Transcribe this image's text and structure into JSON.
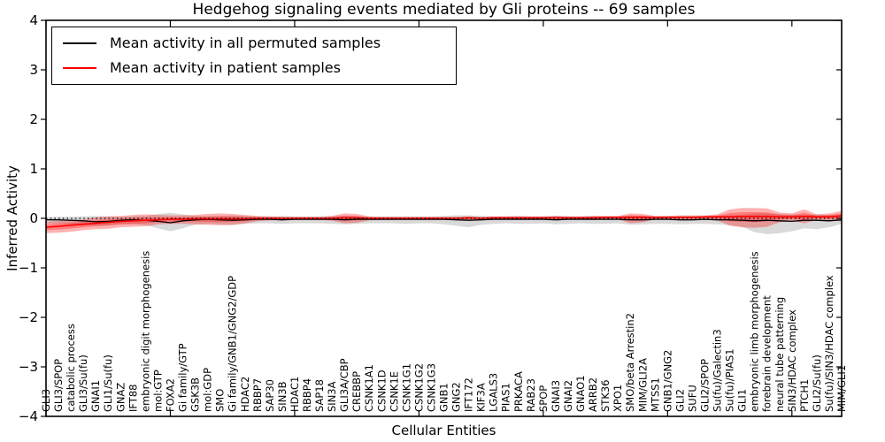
{
  "chart_data": {
    "type": "line",
    "title": "Hedgehog signaling events mediated by Gli proteins -- 69 samples",
    "xlabel": "Cellular Entities",
    "ylabel": "Inferred Activity",
    "ylim": [
      -4,
      4
    ],
    "yticks": [
      4,
      3,
      2,
      1,
      0,
      -1,
      -2,
      -3,
      -4
    ],
    "grid": false,
    "legend_position": "upper left",
    "zero_line": {
      "style": "dotted",
      "color": "#000000",
      "y": 0
    },
    "categories": [
      "GLI3",
      "GLI3/SPOP",
      "catabolic process",
      "GLI3/Su(fu)",
      "GNAI1",
      "GLI1/Su(fu)",
      "GNAZ",
      "IFT88",
      "embryonic digit morphogenesis",
      "mol:GTP",
      "FOXA2",
      "Gi family/GTP",
      "GSK3B",
      "mol:GDP",
      "SMO",
      "Gi family/GNB1/GNG2/GDP",
      "HDAC2",
      "RBBP7",
      "SAP30",
      "SIN3B",
      "HDAC1",
      "RBBP4",
      "SAP18",
      "SIN3A",
      "GLI3A/CBP",
      "CREBBP",
      "CSNK1A1",
      "CSNK1D",
      "CSNK1E",
      "CSNK1G1",
      "CSNK1G2",
      "CSNK1G3",
      "GNB1",
      "GNG2",
      "IFT172",
      "KIF3A",
      "LGALS3",
      "PIAS1",
      "PRKACA",
      "RAB23",
      "SPOP",
      "GNAI3",
      "GNAI2",
      "GNAO1",
      "ARRB2",
      "STK36",
      "XPO1",
      "SMO/beta Arrestin2",
      "MIM/GLI2A",
      "MTSS1",
      "GNB1/GNG2",
      "GLI2",
      "SUFU",
      "GLI2/SPOP",
      "Su(fu)/Galectin3",
      "Su(fu)/PIAS1",
      "GLI1",
      "embryonic limb morphogenesis",
      "forebrain development",
      "neural tube patterning",
      "SIN3/HDAC complex",
      "PTCH1",
      "GLI2/Su(fu)",
      "Su(fu)/SIN3/HDAC complex",
      "MIM/GLI1"
    ],
    "series": [
      {
        "name": "Mean activity in all permuted samples",
        "color": "#000000",
        "band_color": "#000000",
        "band_opacity": 0.15,
        "values": [
          -0.03,
          -0.03,
          -0.04,
          -0.05,
          -0.07,
          -0.06,
          -0.04,
          -0.03,
          -0.04,
          -0.06,
          -0.09,
          -0.05,
          -0.03,
          -0.02,
          -0.03,
          -0.04,
          -0.03,
          -0.02,
          -0.02,
          -0.03,
          -0.02,
          -0.02,
          -0.02,
          -0.02,
          -0.03,
          -0.02,
          -0.02,
          -0.02,
          -0.02,
          -0.02,
          -0.02,
          -0.02,
          -0.02,
          -0.03,
          -0.04,
          -0.03,
          -0.02,
          -0.02,
          -0.02,
          -0.02,
          -0.02,
          -0.03,
          -0.02,
          -0.02,
          -0.02,
          -0.02,
          -0.02,
          -0.03,
          -0.03,
          -0.02,
          -0.02,
          -0.03,
          -0.03,
          -0.02,
          -0.03,
          -0.03,
          -0.04,
          -0.05,
          -0.04,
          -0.05,
          -0.06,
          -0.04,
          -0.04,
          -0.05,
          -0.03
        ],
        "band_upper": [
          0.02,
          0.03,
          0.03,
          0.04,
          0.05,
          0.04,
          0.03,
          0.04,
          0.05,
          0.09,
          0.11,
          0.08,
          0.05,
          0.04,
          0.05,
          0.06,
          0.05,
          0.04,
          0.04,
          0.05,
          0.04,
          0.04,
          0.04,
          0.05,
          0.05,
          0.04,
          0.04,
          0.04,
          0.04,
          0.04,
          0.04,
          0.04,
          0.05,
          0.06,
          0.06,
          0.05,
          0.04,
          0.04,
          0.05,
          0.04,
          0.04,
          0.05,
          0.04,
          0.04,
          0.05,
          0.04,
          0.04,
          0.06,
          0.05,
          0.04,
          0.05,
          0.05,
          0.05,
          0.04,
          0.05,
          0.06,
          0.07,
          0.1,
          0.1,
          0.09,
          0.08,
          0.07,
          0.08,
          0.07,
          0.06
        ],
        "band_lower": [
          -0.1,
          -0.11,
          -0.12,
          -0.13,
          -0.15,
          -0.14,
          -0.12,
          -0.12,
          -0.14,
          -0.2,
          -0.26,
          -0.2,
          -0.13,
          -0.11,
          -0.12,
          -0.14,
          -0.11,
          -0.1,
          -0.1,
          -0.11,
          -0.1,
          -0.1,
          -0.1,
          -0.11,
          -0.12,
          -0.11,
          -0.1,
          -0.1,
          -0.1,
          -0.11,
          -0.1,
          -0.1,
          -0.12,
          -0.15,
          -0.18,
          -0.13,
          -0.11,
          -0.1,
          -0.11,
          -0.11,
          -0.1,
          -0.12,
          -0.11,
          -0.1,
          -0.11,
          -0.11,
          -0.1,
          -0.13,
          -0.12,
          -0.11,
          -0.11,
          -0.12,
          -0.11,
          -0.11,
          -0.12,
          -0.14,
          -0.17,
          -0.28,
          -0.32,
          -0.3,
          -0.26,
          -0.2,
          -0.22,
          -0.18,
          -0.11
        ]
      },
      {
        "name": "Mean activity in patient samples",
        "color": "#ff0000",
        "band_color": "#ff0000",
        "band_opacity": 0.3,
        "values": [
          -0.18,
          -0.16,
          -0.14,
          -0.12,
          -0.1,
          -0.08,
          -0.06,
          -0.05,
          -0.04,
          -0.03,
          -0.02,
          -0.02,
          -0.01,
          -0.01,
          -0.01,
          -0.01,
          -0.01,
          0.0,
          0.0,
          0.0,
          0.0,
          0.0,
          0.0,
          0.0,
          0.01,
          0.01,
          0.0,
          0.0,
          0.0,
          0.0,
          0.0,
          0.0,
          0.0,
          0.0,
          0.01,
          0.0,
          0.01,
          0.01,
          0.01,
          0.01,
          0.01,
          0.01,
          0.01,
          0.01,
          0.01,
          0.02,
          0.02,
          0.02,
          0.02,
          0.02,
          0.02,
          0.02,
          0.02,
          0.03,
          0.03,
          0.03,
          0.04,
          0.04,
          0.04,
          0.03,
          0.03,
          0.04,
          0.03,
          0.03,
          0.05
        ],
        "band_upper": [
          -0.07,
          -0.05,
          -0.04,
          -0.02,
          0.02,
          0.04,
          0.05,
          0.07,
          0.08,
          0.07,
          0.06,
          0.06,
          0.07,
          0.09,
          0.1,
          0.09,
          0.07,
          0.05,
          0.04,
          0.03,
          0.03,
          0.03,
          0.03,
          0.05,
          0.1,
          0.09,
          0.04,
          0.03,
          0.03,
          0.03,
          0.03,
          0.03,
          0.03,
          0.03,
          0.04,
          0.03,
          0.04,
          0.04,
          0.04,
          0.04,
          0.04,
          0.05,
          0.04,
          0.04,
          0.05,
          0.05,
          0.05,
          0.1,
          0.09,
          0.05,
          0.05,
          0.06,
          0.06,
          0.06,
          0.08,
          0.18,
          0.21,
          0.21,
          0.2,
          0.12,
          0.1,
          0.18,
          0.08,
          0.1,
          0.15
        ],
        "band_lower": [
          -0.3,
          -0.29,
          -0.27,
          -0.24,
          -0.22,
          -0.21,
          -0.18,
          -0.17,
          -0.16,
          -0.12,
          -0.11,
          -0.11,
          -0.12,
          -0.13,
          -0.14,
          -0.13,
          -0.1,
          -0.06,
          -0.04,
          -0.03,
          -0.03,
          -0.03,
          -0.03,
          -0.05,
          -0.1,
          -0.09,
          -0.04,
          -0.03,
          -0.03,
          -0.03,
          -0.03,
          -0.03,
          -0.03,
          -0.03,
          -0.04,
          -0.03,
          -0.03,
          -0.02,
          -0.03,
          -0.02,
          -0.02,
          -0.03,
          -0.02,
          -0.02,
          -0.03,
          -0.02,
          -0.02,
          -0.1,
          -0.08,
          -0.02,
          -0.02,
          -0.02,
          -0.02,
          -0.02,
          -0.04,
          -0.15,
          -0.18,
          -0.19,
          -0.17,
          -0.08,
          -0.05,
          -0.1,
          -0.03,
          -0.04,
          -0.06
        ]
      }
    ]
  }
}
